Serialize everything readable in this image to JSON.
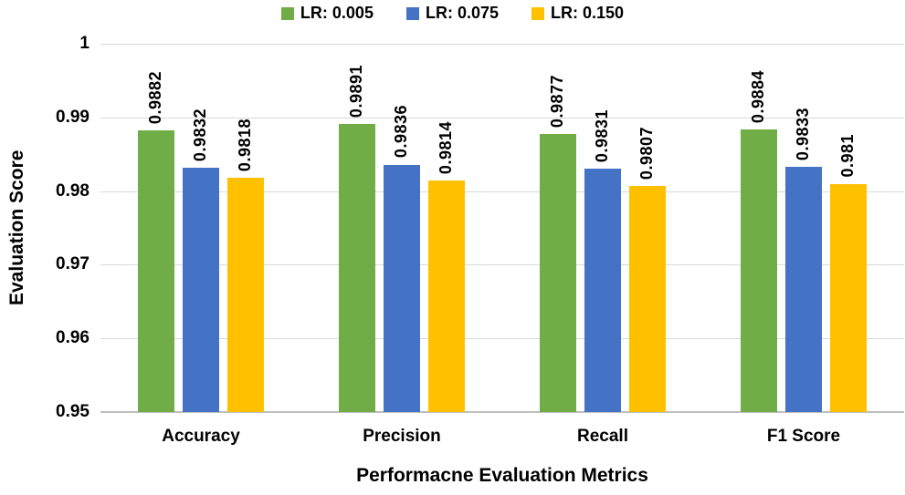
{
  "chart_data": {
    "type": "bar",
    "title": "",
    "xlabel": "Performacne Evaluation Metrics",
    "ylabel": "Evaluation Score",
    "ylim": [
      0.95,
      1
    ],
    "ytick_values": [
      1,
      0.99,
      0.98,
      0.97,
      0.96,
      0.95
    ],
    "ytick_labels": [
      "1",
      "0.99",
      "0.98",
      "0.97",
      "0.96",
      "0.95"
    ],
    "grid": true,
    "legend_position": "top",
    "categories": [
      "Accuracy",
      "Precision",
      "Recall",
      "F1 Score"
    ],
    "series": [
      {
        "name": "LR: 0.005",
        "color": "#70AD47",
        "values": [
          0.9882,
          0.9891,
          0.9877,
          0.9884
        ],
        "labels": [
          "0.9882",
          "0.9891",
          "0.9877",
          "0.9884"
        ]
      },
      {
        "name": "LR: 0.075",
        "color": "#4472C4",
        "values": [
          0.9832,
          0.9836,
          0.9831,
          0.9833
        ],
        "labels": [
          "0.9832",
          "0.9836",
          "0.9831",
          "0.9833"
        ]
      },
      {
        "name": "LR: 0.150",
        "color": "#FFC000",
        "values": [
          0.9818,
          0.9814,
          0.9807,
          0.981
        ],
        "labels": [
          "0.9818",
          "0.9814",
          "0.9807",
          "0.981"
        ]
      }
    ],
    "colors": {
      "gridline": "#D9D9D9",
      "axis_line": "#BFBFBF",
      "text": "#000000",
      "background": "#FFFFFF"
    }
  }
}
